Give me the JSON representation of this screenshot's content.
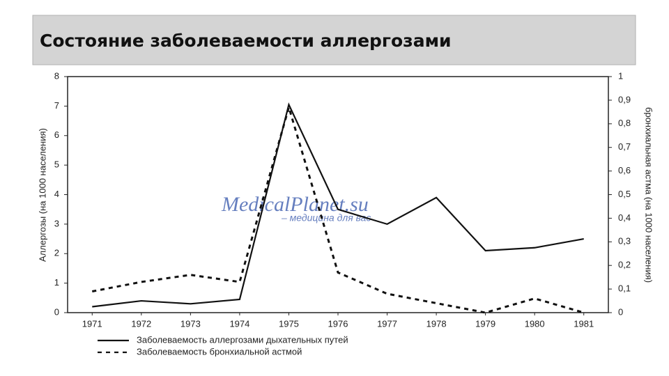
{
  "chart_data": {
    "type": "line",
    "title": "Состояние заболеваемости аллергозами",
    "watermark": "MedicalPlanet.su",
    "watermark_subtitle": "– медицина для вас",
    "y_label": "Аллергозы (на 1000 населения)",
    "y2_label": "бронхиальная астма (на 1000 населения)",
    "categories": [
      "1971",
      "1972",
      "1973",
      "1974",
      "1975",
      "1976",
      "1977",
      "1978",
      "1979",
      "1980",
      "1981"
    ],
    "series": [
      {
        "name": "Заболеваемость аллергозами дыхательных путей",
        "color": "#111111",
        "line_style": "solid",
        "values": [
          0.2,
          0.4,
          0.3,
          0.45,
          7.05,
          3.5,
          3.0,
          3.9,
          2.1,
          2.2,
          2.5
        ]
      },
      {
        "name": "Заболеваемость бронхиальной астмой",
        "color": "#111111",
        "line_style": "dotted",
        "axis": "y2",
        "values": [
          0.09,
          0.13,
          0.16,
          0.13,
          0.87,
          0.17,
          0.08,
          0.04,
          0,
          0.06,
          0
        ]
      }
    ],
    "ylim": [
      0,
      8
    ],
    "yticks": [
      0,
      1,
      2,
      3,
      4,
      5,
      6,
      7,
      8
    ],
    "y2lim": [
      0,
      1
    ],
    "y2ticks": [
      0,
      {
        "value": 0.1,
        "label": "0,1"
      },
      {
        "value": 0.2,
        "label": "0,2"
      },
      {
        "value": 0.3,
        "label": "0,3"
      },
      {
        "value": 0.4,
        "label": "0,4"
      },
      {
        "value": 0.5,
        "label": "0,5"
      },
      {
        "value": 0.6,
        "label": "0,6"
      },
      {
        "value": 0.7,
        "label": "0,7"
      },
      {
        "value": 0.8,
        "label": "0,8"
      },
      {
        "value": 0.9,
        "label": "0,9"
      },
      1
    ],
    "grid": false,
    "legend": "bottom"
  }
}
